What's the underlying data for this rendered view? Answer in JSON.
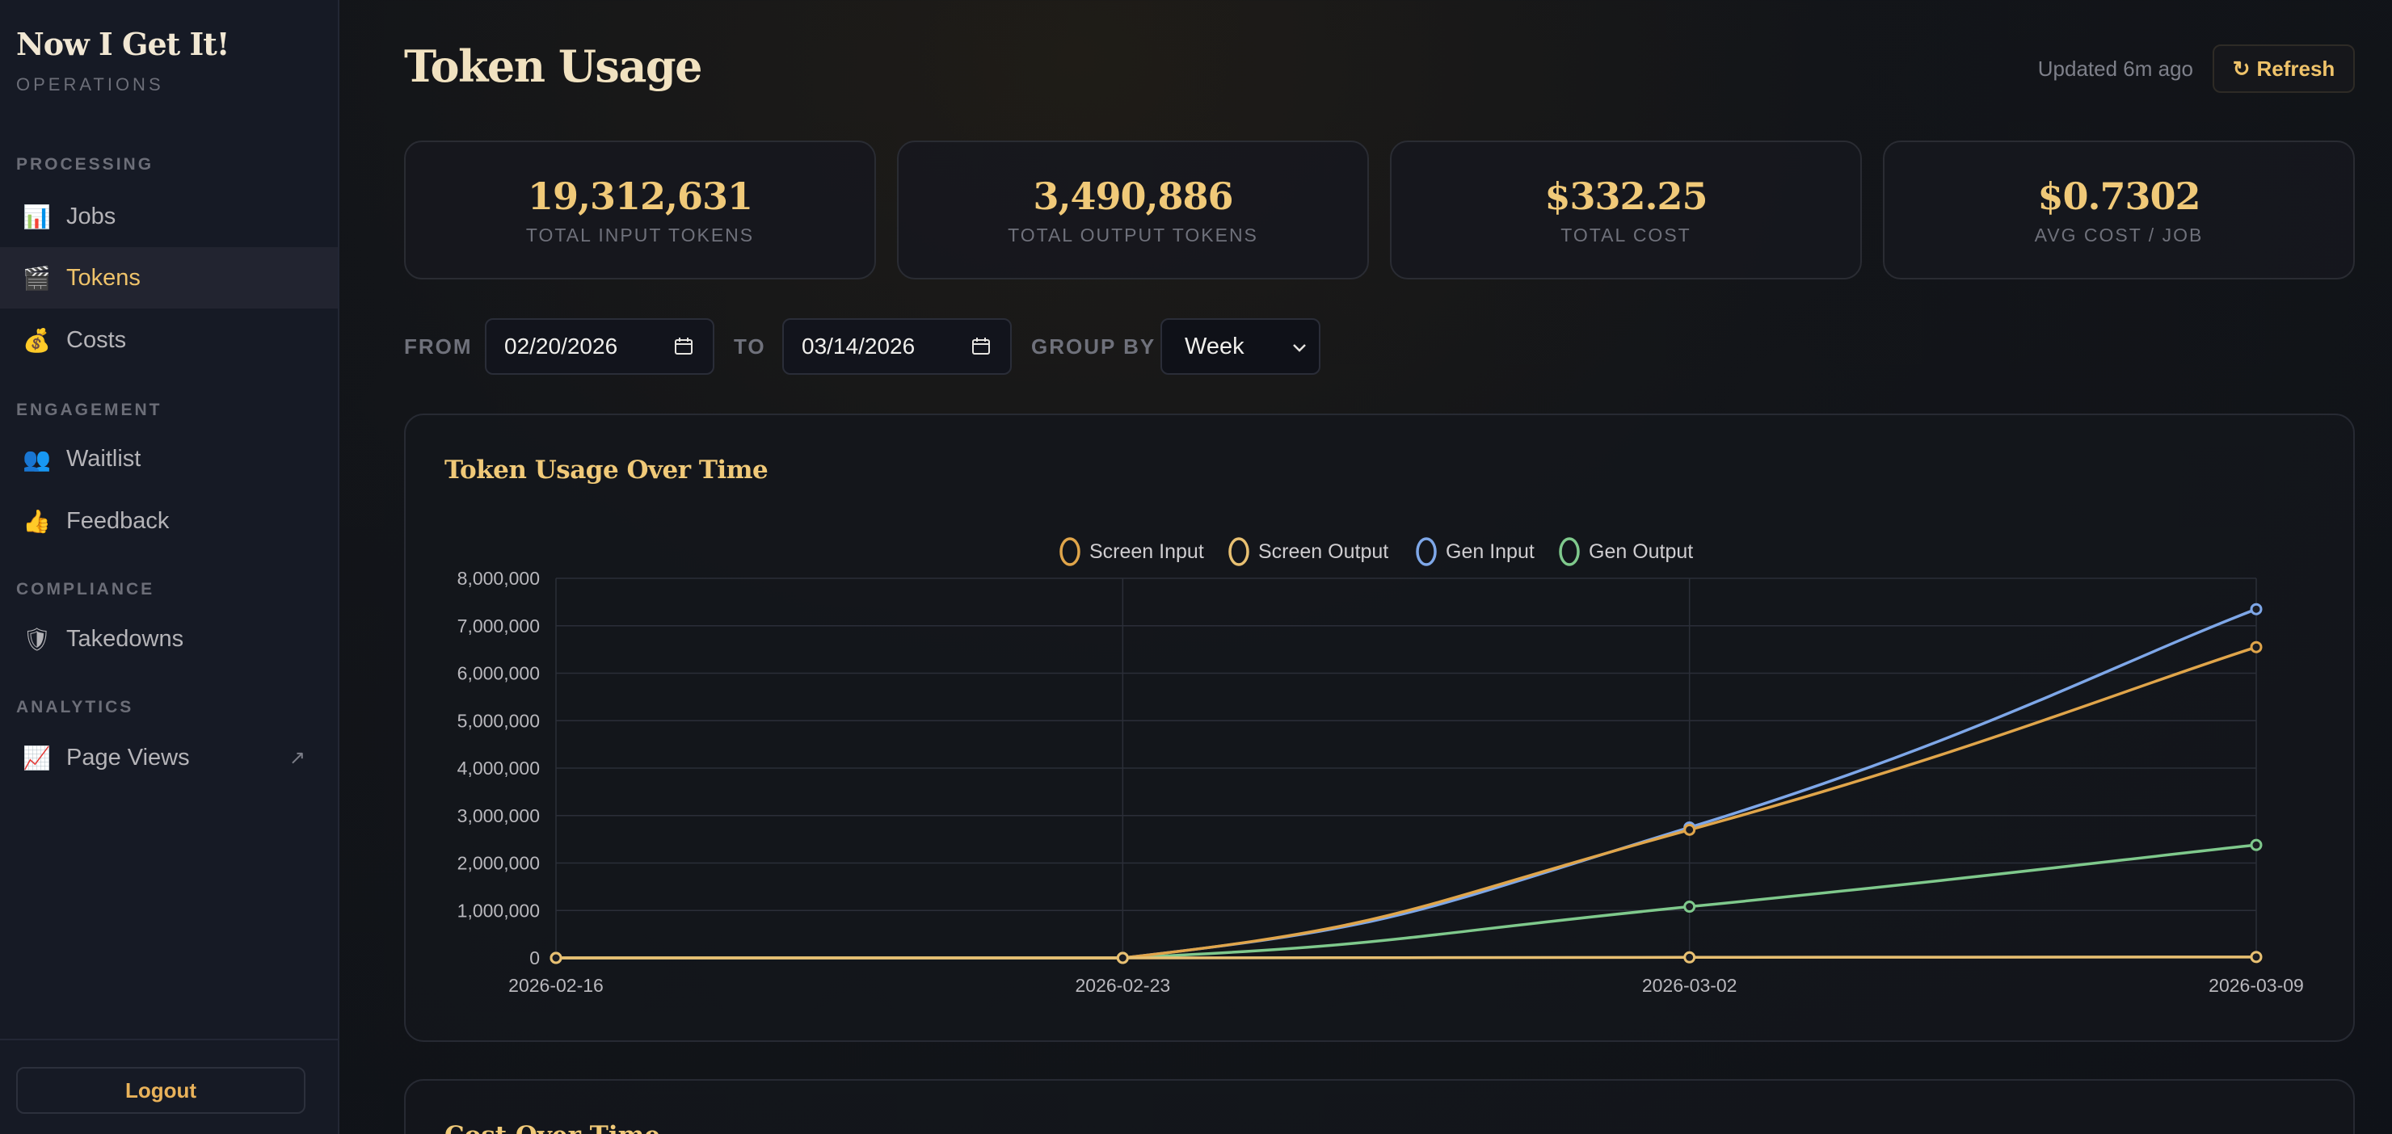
{
  "sidebar": {
    "brand": "Now I Get It!",
    "brand_sub": "OPERATIONS",
    "sections": [
      {
        "label": "PROCESSING",
        "items": [
          {
            "label": "Jobs",
            "icon": "📊",
            "icon_name": "bar-chart-icon"
          },
          {
            "label": "Tokens",
            "icon": "🎬",
            "icon_name": "clapper-icon",
            "active": true
          },
          {
            "label": "Costs",
            "icon": "💰",
            "icon_name": "money-bag-icon"
          }
        ]
      },
      {
        "label": "ENGAGEMENT",
        "items": [
          {
            "label": "Waitlist",
            "icon": "👥",
            "icon_name": "people-icon"
          },
          {
            "label": "Feedback",
            "icon": "👍",
            "icon_name": "thumbs-up-icon"
          }
        ]
      },
      {
        "label": "COMPLIANCE",
        "items": [
          {
            "label": "Takedowns",
            "icon": "🛡",
            "icon_name": "shield-icon"
          }
        ]
      },
      {
        "label": "ANALYTICS",
        "items": [
          {
            "label": "Page Views",
            "icon": "📈",
            "icon_name": "trend-chart-icon",
            "external": "↗"
          }
        ]
      }
    ],
    "logout_label": "Logout"
  },
  "header": {
    "title": "Token Usage",
    "updated": "Updated 6m ago",
    "refresh_label": "Refresh",
    "refresh_icon": "↻"
  },
  "stats": [
    {
      "value": "19,312,631",
      "label": "TOTAL INPUT TOKENS"
    },
    {
      "value": "3,490,886",
      "label": "TOTAL OUTPUT TOKENS"
    },
    {
      "value": "$332.25",
      "label": "TOTAL COST"
    },
    {
      "value": "$0.7302",
      "label": "AVG COST / JOB"
    }
  ],
  "filters": {
    "from_label": "FROM",
    "from_value": "02/20/2026",
    "to_label": "TO",
    "to_value": "03/14/2026",
    "group_label": "GROUP BY",
    "group_value": "Week"
  },
  "chart_card": {
    "title": "Token Usage Over Time"
  },
  "next_card": {
    "title": "Cost Over Time"
  },
  "colors": {
    "accent": "#efc36a",
    "screen_input": "#e0a54a",
    "screen_output": "#e8c072",
    "gen_input": "#7ea7e8",
    "gen_output": "#7fc98c"
  },
  "chart_data": {
    "type": "line",
    "x": [
      "2026-02-16",
      "2026-02-23",
      "2026-03-02",
      "2026-03-09"
    ],
    "ylim": [
      0,
      8000000
    ],
    "yticks": [
      0,
      1000000,
      2000000,
      3000000,
      4000000,
      5000000,
      6000000,
      7000000,
      8000000
    ],
    "ytick_labels": [
      "0",
      "1,000,000",
      "2,000,000",
      "3,000,000",
      "4,000,000",
      "5,000,000",
      "6,000,000",
      "7,000,000",
      "8,000,000"
    ],
    "legend_position": "top-center",
    "grid": true,
    "series": [
      {
        "name": "Screen Input",
        "color": "#e0a54a",
        "values": [
          0,
          0,
          2700000,
          6550000
        ]
      },
      {
        "name": "Screen Output",
        "color": "#e8c072",
        "values": [
          0,
          0,
          12000,
          20000
        ]
      },
      {
        "name": "Gen Input",
        "color": "#7ea7e8",
        "values": [
          0,
          0,
          2750000,
          7350000
        ]
      },
      {
        "name": "Gen Output",
        "color": "#7fc98c",
        "values": [
          0,
          0,
          1080000,
          2380000
        ]
      }
    ]
  }
}
